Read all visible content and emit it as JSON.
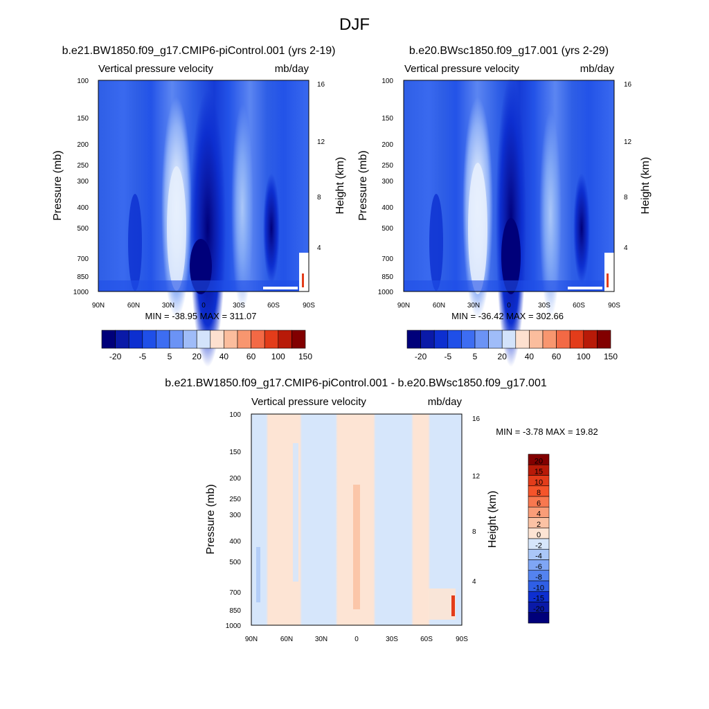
{
  "figure": {
    "title": "DJF"
  },
  "chart_data": [
    {
      "type": "heatmap",
      "title": "b.e21.BW1850.f09_g17.CMIP6-piControl.001 (yrs 2-19)",
      "field_label": "Vertical pressure velocity",
      "units": "mb/day",
      "ylabel": "Pressure (mb)",
      "ylabel_right": "Height (km)",
      "x_ticks": [
        "90N",
        "60N",
        "30N",
        "0",
        "30S",
        "60S",
        "90S"
      ],
      "y_ticks": [
        "100",
        "150",
        "200",
        "250",
        "300",
        "400",
        "500",
        "700",
        "850",
        "1000"
      ],
      "y_ticks_right": [
        "16",
        "12",
        "8",
        "4"
      ],
      "stats": "MIN = -38.95  MAX = 311.07",
      "min": -38.95,
      "max": 311.07,
      "colorbar_labels": [
        "-20",
        "-5",
        "5",
        "20",
        "40",
        "60",
        "100",
        "150"
      ],
      "colorbar_colors": [
        "#00007a",
        "#0a1aa8",
        "#0d2fd0",
        "#1f4fe8",
        "#3d6df2",
        "#6b93f5",
        "#9fbcf8",
        "#d3e3fb",
        "#fde0cf",
        "#fbbd9d",
        "#f8966f",
        "#f36945",
        "#e33c1a",
        "#b81a08",
        "#820000"
      ]
    },
    {
      "type": "heatmap",
      "title": "b.e20.BWsc1850.f09_g17.001 (yrs 2-29)",
      "field_label": "Vertical pressure velocity",
      "units": "mb/day",
      "ylabel": "Pressure (mb)",
      "ylabel_right": "Height (km)",
      "x_ticks": [
        "90N",
        "60N",
        "30N",
        "0",
        "30S",
        "60S",
        "90S"
      ],
      "y_ticks": [
        "100",
        "150",
        "200",
        "250",
        "300",
        "400",
        "500",
        "700",
        "850",
        "1000"
      ],
      "y_ticks_right": [
        "16",
        "12",
        "8",
        "4"
      ],
      "stats": "MIN = -36.42  MAX = 302.66",
      "min": -36.42,
      "max": 302.66,
      "colorbar_labels": [
        "-20",
        "-5",
        "5",
        "20",
        "40",
        "60",
        "100",
        "150"
      ],
      "colorbar_colors": [
        "#00007a",
        "#0a1aa8",
        "#0d2fd0",
        "#1f4fe8",
        "#3d6df2",
        "#6b93f5",
        "#9fbcf8",
        "#d3e3fb",
        "#fde0cf",
        "#fbbd9d",
        "#f8966f",
        "#f36945",
        "#e33c1a",
        "#b81a08",
        "#820000"
      ]
    },
    {
      "type": "heatmap",
      "title": "b.e21.BW1850.f09_g17.CMIP6-piControl.001 - b.e20.BWsc1850.f09_g17.001",
      "field_label": "Vertical pressure velocity",
      "units": "mb/day",
      "ylabel": "Pressure (mb)",
      "ylabel_right": "Height (km)",
      "x_ticks": [
        "90N",
        "60N",
        "30N",
        "0",
        "30S",
        "60S",
        "90S"
      ],
      "y_ticks": [
        "100",
        "150",
        "200",
        "250",
        "300",
        "400",
        "500",
        "700",
        "850",
        "1000"
      ],
      "y_ticks_right": [
        "16",
        "12",
        "8",
        "4"
      ],
      "stats": "MIN =  -3.78  MAX =  19.82",
      "min": -3.78,
      "max": 19.82,
      "colorbar_labels": [
        "20",
        "15",
        "10",
        "8",
        "6",
        "4",
        "2",
        "0",
        "-2",
        "-4",
        "-6",
        "-8",
        "-10",
        "-15",
        "-20"
      ],
      "colorbar_colors": [
        "#820000",
        "#b81a08",
        "#e33c1a",
        "#f5542a",
        "#f8784f",
        "#f99d78",
        "#fbc2a4",
        "#fde4d4",
        "#d6e6fb",
        "#aac7f8",
        "#7fa6f5",
        "#5483f0",
        "#2f5fe6",
        "#0d2fd0",
        "#0a1aa8",
        "#00007a"
      ]
    }
  ]
}
